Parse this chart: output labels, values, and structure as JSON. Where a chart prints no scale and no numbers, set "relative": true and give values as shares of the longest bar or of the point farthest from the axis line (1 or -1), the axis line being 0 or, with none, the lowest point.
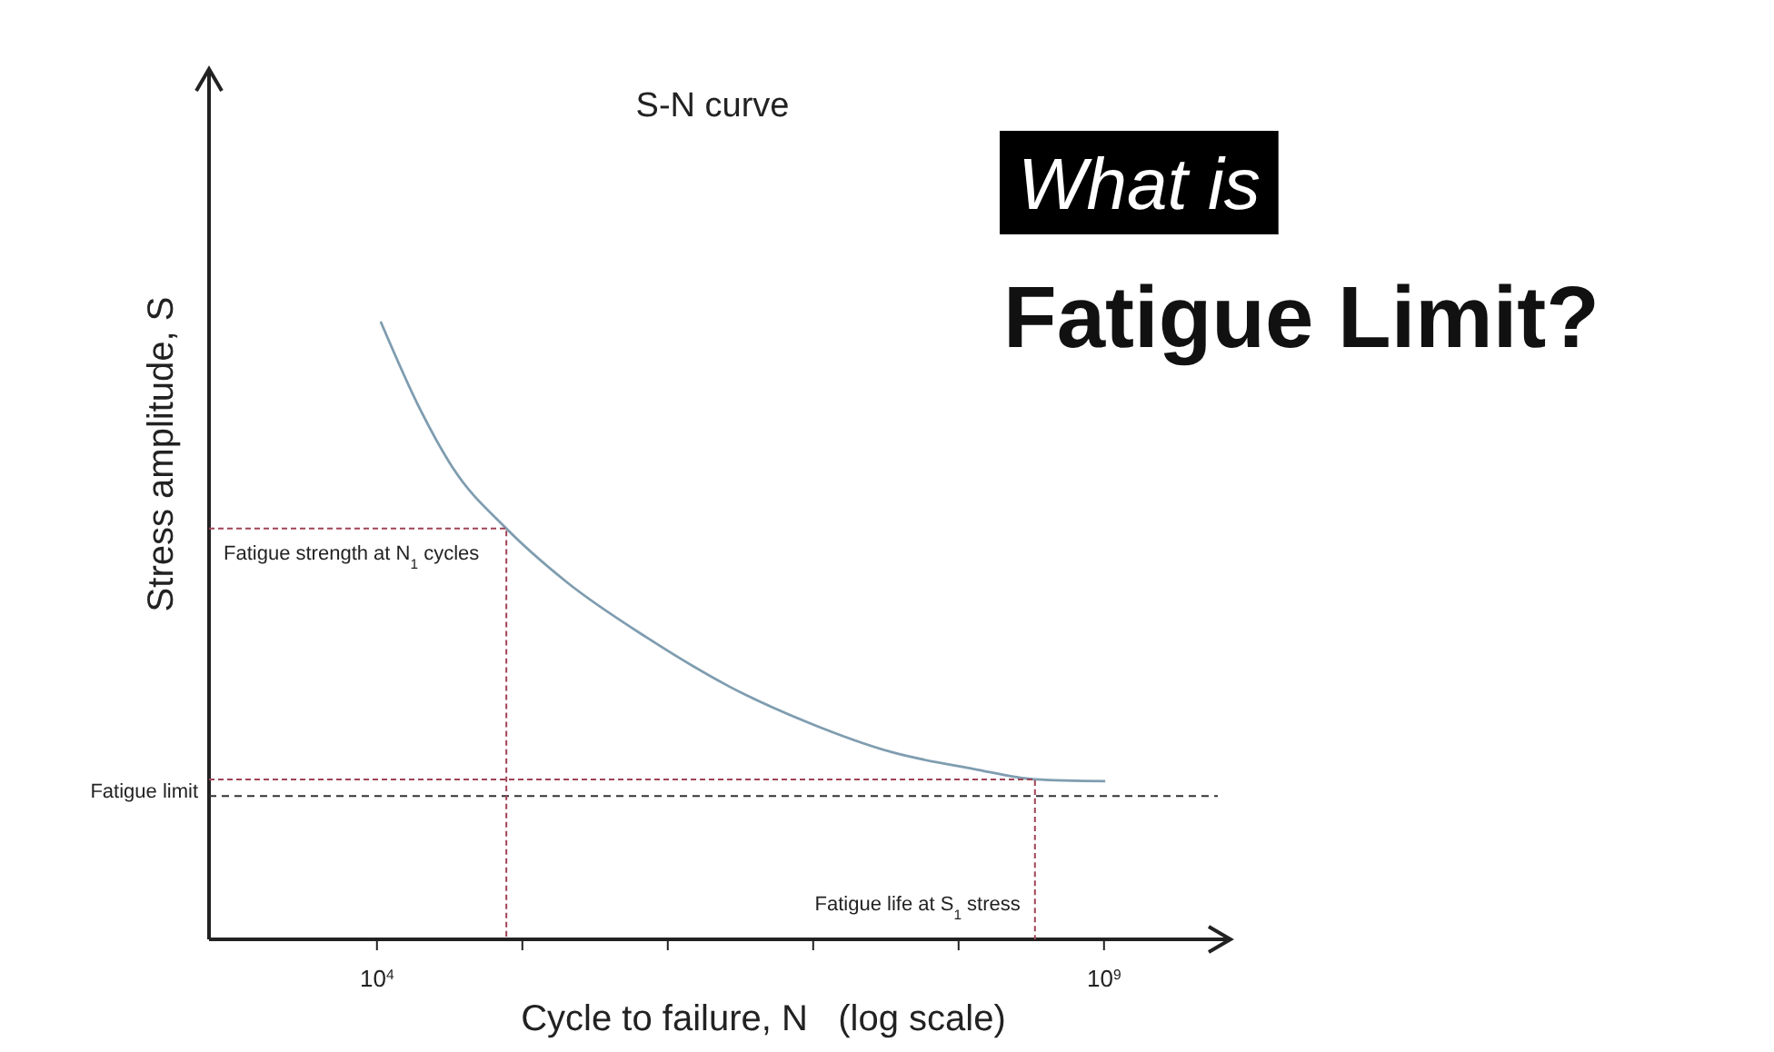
{
  "chart_data": {
    "type": "line",
    "title": "S-N curve",
    "xlabel": "Cycle to failure, N   (log scale)",
    "ylabel": "Stress amplitude, S",
    "relative": true,
    "log": "x",
    "xlim": [
      700,
      7000000000
    ],
    "xticks": [
      {
        "value": 10000,
        "label": "10$^{4}$"
      },
      {
        "value": 100000,
        "label": null
      },
      {
        "value": 1000000,
        "label": null
      },
      {
        "value": 10000000,
        "label": null
      },
      {
        "value": 100000000,
        "label": null
      },
      {
        "value": 1000000000,
        "label": "10$^{9}$"
      }
    ],
    "series": [
      {
        "color": "#7f9db0",
        "line_style": "solid",
        "x": [
          10600,
          20000,
          33500,
          77600,
          200000,
          724000,
          2660000,
          9440000,
          34700000,
          126000000,
          335000000,
          1020000000
        ],
        "values": [
          1,
          0.856,
          0.762,
          0.665,
          0.579,
          0.488,
          0.409,
          0.35,
          0.303,
          0.276,
          0.259,
          0.256
        ]
      },
      {
        "color": "#a04455",
        "line_style": "dashed",
        "x": [
          700,
          77600,
          77600
        ],
        "values": [
          0.665,
          0.665,
          0
        ]
      },
      {
        "color": "#a04455",
        "line_style": "dashed",
        "x": [
          700,
          335000000,
          335000000
        ],
        "values": [
          0.259,
          0.259,
          0
        ]
      }
    ],
    "ref_lines": [
      {
        "axis": "y",
        "value": 0.232,
        "label": "Fatigue limit",
        "color": "#333333",
        "line_style": "dashed"
      }
    ],
    "annotations": [
      "What is",
      "Fatigue Limit?",
      {
        "text": "Fatigue strength at N$_{1}$ cycles",
        "x": 700,
        "y": 0.665
      },
      {
        "text": "Fatigue life at S$_{1}$ stress",
        "x": 335000000,
        "y": 0
      }
    ]
  }
}
